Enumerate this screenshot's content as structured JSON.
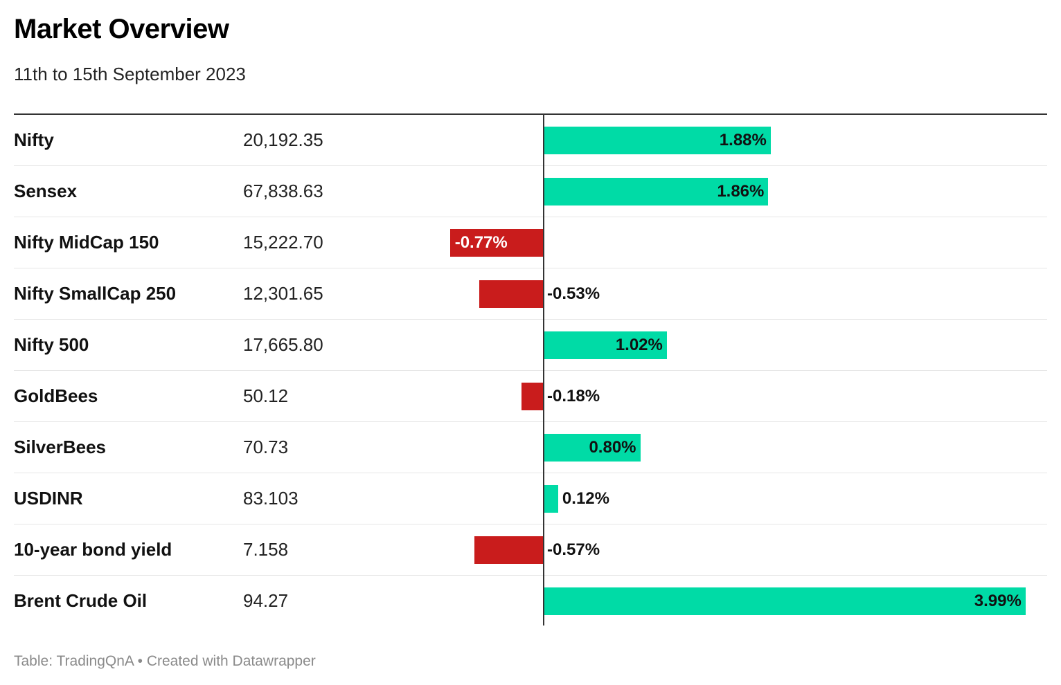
{
  "title": "Market Overview",
  "subtitle": "11th to 15th September 2023",
  "footer": {
    "source_label": "Table: TradingQnA",
    "separator": "•",
    "credit": "Created with Datawrapper"
  },
  "colors": {
    "positive": "#00dba6",
    "negative": "#c91c1c",
    "negative_label_inside": "#ffffff",
    "label": "#111111"
  },
  "chart_data": {
    "type": "table",
    "columns": [
      "",
      "",
      ""
    ],
    "bar_range": [
      -1.0,
      3.99
    ],
    "rows": [
      {
        "name": "Nifty",
        "value": "20,192.35",
        "change": 1.88,
        "change_label": "1.88%"
      },
      {
        "name": "Sensex",
        "value": "67,838.63",
        "change": 1.86,
        "change_label": "1.86%"
      },
      {
        "name": "Nifty MidCap 150",
        "value": "15,222.70",
        "change": -0.77,
        "change_label": "-0.77%"
      },
      {
        "name": "Nifty SmallCap 250",
        "value": "12,301.65",
        "change": -0.53,
        "change_label": "-0.53%"
      },
      {
        "name": "Nifty 500",
        "value": "17,665.80",
        "change": 1.02,
        "change_label": "1.02%"
      },
      {
        "name": "GoldBees",
        "value": "50.12",
        "change": -0.18,
        "change_label": "-0.18%"
      },
      {
        "name": "SilverBees",
        "value": "70.73",
        "change": 0.8,
        "change_label": "0.80%"
      },
      {
        "name": "USDINR",
        "value": "83.103",
        "change": 0.12,
        "change_label": "0.12%"
      },
      {
        "name": "10-year bond yield",
        "value": "7.158",
        "change": -0.57,
        "change_label": "-0.57%"
      },
      {
        "name": "Brent Crude Oil",
        "value": "94.27",
        "change": 3.99,
        "change_label": "3.99%"
      }
    ]
  }
}
